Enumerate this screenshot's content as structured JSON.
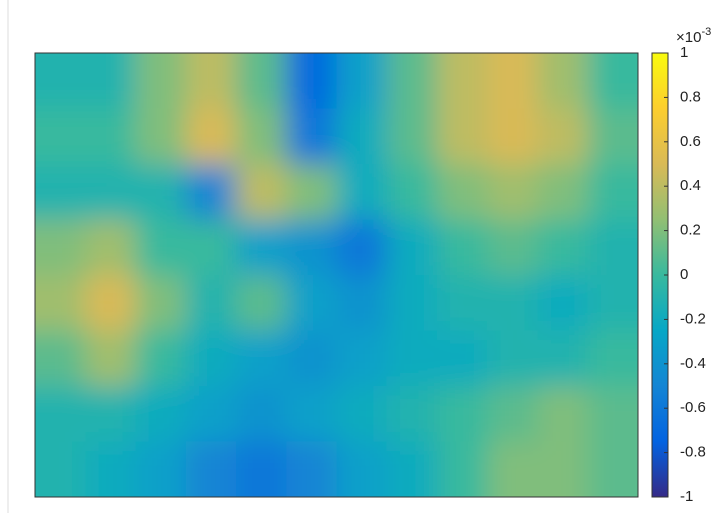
{
  "chart_data": {
    "type": "heatmap",
    "z": [
      [
        -0.1,
        -0.1,
        0.2,
        0.4,
        0.1,
        -0.7,
        -0.3,
        0.1,
        0.4,
        0.5,
        0.3,
        0.0
      ],
      [
        0.0,
        0.0,
        0.2,
        0.5,
        0.2,
        -0.6,
        -0.2,
        0.1,
        0.4,
        0.5,
        0.4,
        0.1
      ],
      [
        -0.1,
        -0.1,
        -0.1,
        -0.5,
        0.4,
        0.2,
        -0.2,
        0.0,
        0.2,
        0.3,
        0.2,
        0.0
      ],
      [
        0.2,
        0.3,
        0.0,
        0.0,
        -0.3,
        -0.4,
        -0.6,
        -0.2,
        0.0,
        0.1,
        0.0,
        -0.1
      ],
      [
        0.3,
        0.5,
        0.2,
        -0.1,
        0.1,
        -0.3,
        -0.4,
        -0.2,
        -0.1,
        -0.1,
        -0.2,
        -0.1
      ],
      [
        0.1,
        0.3,
        0.0,
        -0.2,
        -0.3,
        -0.4,
        -0.3,
        -0.2,
        -0.2,
        -0.1,
        -0.1,
        0.0
      ],
      [
        -0.1,
        -0.1,
        -0.2,
        -0.3,
        -0.4,
        -0.3,
        -0.2,
        -0.1,
        0.0,
        0.1,
        0.2,
        0.1
      ],
      [
        -0.1,
        -0.2,
        -0.3,
        -0.5,
        -0.6,
        -0.5,
        -0.3,
        -0.2,
        0.0,
        0.2,
        0.2,
        0.1
      ]
    ],
    "zlim": [
      -1,
      1
    ],
    "zticks": [
      -1,
      -0.8,
      -0.6,
      -0.4,
      -0.2,
      0,
      0.2,
      0.4,
      0.6,
      0.8,
      1
    ],
    "colorbar_label_base": "×10",
    "colorbar_label_exponent": "-3",
    "colormap": [
      "#352a87",
      "#0363e1",
      "#1485d4",
      "#06a7c6",
      "#38b99e",
      "#92bf73",
      "#d9ba56",
      "#fcce2e",
      "#f9fb0e"
    ]
  }
}
